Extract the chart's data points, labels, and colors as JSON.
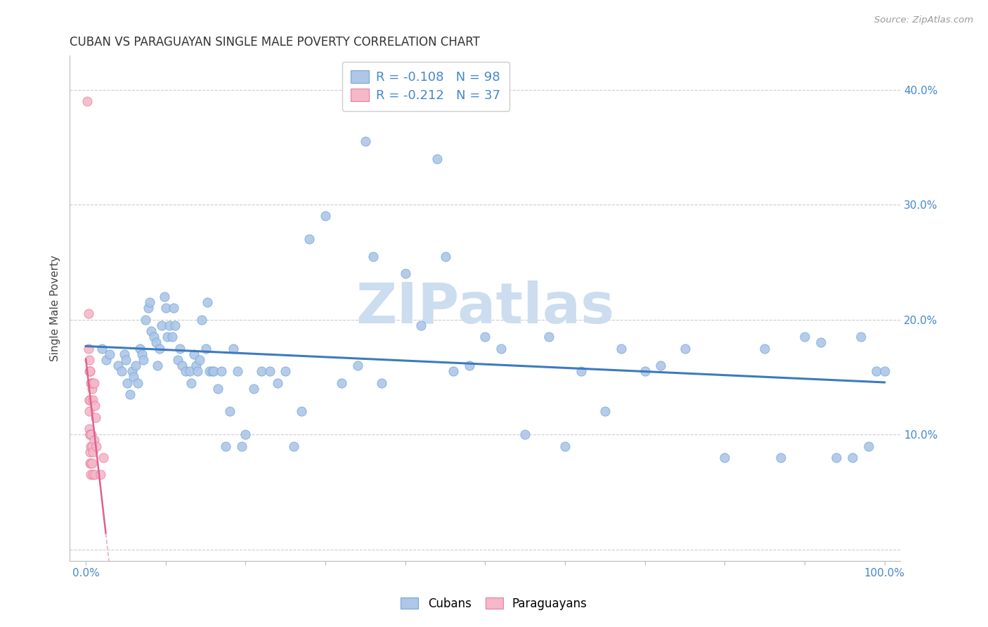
{
  "title": "CUBAN VS PARAGUAYAN SINGLE MALE POVERTY CORRELATION CHART",
  "source": "Source: ZipAtlas.com",
  "ylabel": "Single Male Poverty",
  "cuban_R": -0.108,
  "cuban_N": 98,
  "paraguay_R": -0.212,
  "paraguay_N": 37,
  "cuban_color": "#aec6e8",
  "paraguayan_color": "#f4b8c8",
  "cuban_edge_color": "#6fa8d6",
  "paraguayan_edge_color": "#e87fa0",
  "cuban_line_color": "#3d7abf",
  "paraguayan_line_color": "#e06090",
  "paraguayan_dash_color": "#e8b0c8",
  "watermark_color": "#ccddf0",
  "tick_color": "#4488cc",
  "grid_color": "#cccccc",
  "spine_color": "#bbbbbb",
  "xlim": [
    -0.02,
    1.02
  ],
  "ylim": [
    -0.01,
    0.43
  ],
  "yticks": [
    0.0,
    0.1,
    0.2,
    0.3,
    0.4
  ],
  "xtick_positions": [
    0.0,
    0.1,
    0.2,
    0.3,
    0.4,
    0.5,
    0.6,
    0.7,
    0.8,
    0.9,
    1.0
  ],
  "cubans_x": [
    0.02,
    0.025,
    0.03,
    0.04,
    0.045,
    0.048,
    0.05,
    0.052,
    0.055,
    0.058,
    0.06,
    0.062,
    0.065,
    0.068,
    0.07,
    0.072,
    0.075,
    0.078,
    0.08,
    0.082,
    0.085,
    0.088,
    0.09,
    0.092,
    0.095,
    0.098,
    0.1,
    0.102,
    0.105,
    0.108,
    0.11,
    0.112,
    0.115,
    0.118,
    0.12,
    0.125,
    0.13,
    0.132,
    0.135,
    0.138,
    0.14,
    0.142,
    0.145,
    0.15,
    0.152,
    0.155,
    0.158,
    0.16,
    0.165,
    0.17,
    0.175,
    0.18,
    0.185,
    0.19,
    0.195,
    0.2,
    0.21,
    0.22,
    0.23,
    0.24,
    0.25,
    0.26,
    0.27,
    0.28,
    0.3,
    0.32,
    0.34,
    0.35,
    0.36,
    0.37,
    0.4,
    0.42,
    0.44,
    0.45,
    0.46,
    0.48,
    0.5,
    0.52,
    0.55,
    0.58,
    0.6,
    0.62,
    0.65,
    0.67,
    0.7,
    0.72,
    0.75,
    0.8,
    0.85,
    0.87,
    0.9,
    0.92,
    0.94,
    0.96,
    0.97,
    0.98,
    0.99,
    1.0
  ],
  "cubans_y": [
    0.175,
    0.165,
    0.17,
    0.16,
    0.155,
    0.17,
    0.165,
    0.145,
    0.135,
    0.155,
    0.15,
    0.16,
    0.145,
    0.175,
    0.17,
    0.165,
    0.2,
    0.21,
    0.215,
    0.19,
    0.185,
    0.18,
    0.16,
    0.175,
    0.195,
    0.22,
    0.21,
    0.185,
    0.195,
    0.185,
    0.21,
    0.195,
    0.165,
    0.175,
    0.16,
    0.155,
    0.155,
    0.145,
    0.17,
    0.16,
    0.155,
    0.165,
    0.2,
    0.175,
    0.215,
    0.155,
    0.155,
    0.155,
    0.14,
    0.155,
    0.09,
    0.12,
    0.175,
    0.155,
    0.09,
    0.1,
    0.14,
    0.155,
    0.155,
    0.145,
    0.155,
    0.09,
    0.12,
    0.27,
    0.29,
    0.145,
    0.16,
    0.355,
    0.255,
    0.145,
    0.24,
    0.195,
    0.34,
    0.255,
    0.155,
    0.16,
    0.185,
    0.175,
    0.1,
    0.185,
    0.09,
    0.155,
    0.12,
    0.175,
    0.155,
    0.16,
    0.175,
    0.08,
    0.175,
    0.08,
    0.185,
    0.18,
    0.08,
    0.08,
    0.185,
    0.09,
    0.155,
    0.155
  ],
  "paraguayans_x": [
    0.002,
    0.003,
    0.003,
    0.004,
    0.004,
    0.004,
    0.004,
    0.004,
    0.005,
    0.005,
    0.005,
    0.005,
    0.005,
    0.005,
    0.005,
    0.005,
    0.006,
    0.006,
    0.006,
    0.006,
    0.007,
    0.007,
    0.008,
    0.008,
    0.008,
    0.009,
    0.009,
    0.009,
    0.009,
    0.01,
    0.01,
    0.011,
    0.011,
    0.012,
    0.013,
    0.018,
    0.022
  ],
  "paraguayans_y": [
    0.39,
    0.205,
    0.175,
    0.165,
    0.155,
    0.13,
    0.12,
    0.105,
    0.1,
    0.155,
    0.13,
    0.1,
    0.085,
    0.155,
    0.1,
    0.075,
    0.145,
    0.09,
    0.075,
    0.065,
    0.145,
    0.1,
    0.14,
    0.09,
    0.075,
    0.145,
    0.13,
    0.085,
    0.065,
    0.145,
    0.095,
    0.125,
    0.065,
    0.115,
    0.09,
    0.065,
    0.08
  ]
}
